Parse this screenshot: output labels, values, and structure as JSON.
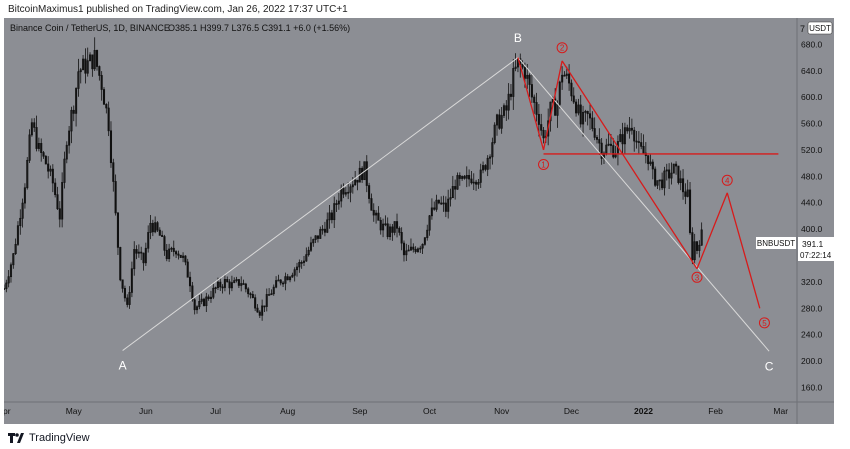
{
  "header": {
    "published_by": "BitcoinMaximus1 published on TradingView.com, Jan 26, 2022 17:37 UTC+1"
  },
  "footer": {
    "brand": "TradingView"
  },
  "colors": {
    "plot_bg": "#8c8e94",
    "price_axis_bg": "#8c8e94",
    "candle": "#111111",
    "projection": "#d9d9d9",
    "wave_red": "#d71b1b",
    "label_white": "#ffffff",
    "price_tag_bg": "#ffffff"
  },
  "chart_data": {
    "type": "candlestick",
    "legend": {
      "symbol": "Binance Coin / TetherUS, 1D, BINANCE",
      "ohlc": "O385.1  H399.7  L376.5  C391.1  +6.0 (+1.56%)"
    },
    "currency": "USDT",
    "symbol_tag": "BNBUSDT",
    "last_price": "391.1",
    "countdown": "07:22:14",
    "ylim": [
      138,
      720
    ],
    "x_range": [
      "2021-04-01",
      "2022-03-08"
    ],
    "y_ticks": [
      160,
      200,
      240,
      280,
      320,
      360,
      400,
      440,
      480,
      520,
      560,
      600,
      640,
      680
    ],
    "y_tick_labels": [
      "160.0",
      "200.0",
      "240.0",
      "280.0",
      "320.0",
      "360.0",
      "400.0",
      "440.0",
      "480.0",
      "520.0",
      "560.0",
      "600.0",
      "640.0",
      "680.0"
    ],
    "y_top_label": "7",
    "x_ticks": [
      {
        "date": "2021-04-01",
        "label": "Apr"
      },
      {
        "date": "2021-05-01",
        "label": "May"
      },
      {
        "date": "2021-06-01",
        "label": "Jun"
      },
      {
        "date": "2021-07-01",
        "label": "Jul"
      },
      {
        "date": "2021-08-01",
        "label": "Aug"
      },
      {
        "date": "2021-09-01",
        "label": "Sep"
      },
      {
        "date": "2021-10-01",
        "label": "Oct"
      },
      {
        "date": "2021-11-01",
        "label": "Nov"
      },
      {
        "date": "2021-12-01",
        "label": "Dec"
      },
      {
        "date": "2022-01-01",
        "label": "2022"
      },
      {
        "date": "2022-02-01",
        "label": "Feb"
      },
      {
        "date": "2022-03-01",
        "label": "Mar"
      }
    ],
    "close_anchors": [
      [
        "2021-04-01",
        310
      ],
      [
        "2021-04-05",
        360
      ],
      [
        "2021-04-10",
        470
      ],
      [
        "2021-04-13",
        560
      ],
      [
        "2021-04-16",
        520
      ],
      [
        "2021-04-19",
        500
      ],
      [
        "2021-04-22",
        470
      ],
      [
        "2021-04-25",
        420
      ],
      [
        "2021-04-28",
        540
      ],
      [
        "2021-05-01",
        590
      ],
      [
        "2021-05-03",
        640
      ],
      [
        "2021-05-07",
        650
      ],
      [
        "2021-05-10",
        660
      ],
      [
        "2021-05-13",
        620
      ],
      [
        "2021-05-16",
        560
      ],
      [
        "2021-05-19",
        420
      ],
      [
        "2021-05-21",
        330
      ],
      [
        "2021-05-24",
        280
      ],
      [
        "2021-05-27",
        370
      ],
      [
        "2021-05-31",
        350
      ],
      [
        "2021-06-03",
        410
      ],
      [
        "2021-06-07",
        390
      ],
      [
        "2021-06-10",
        360
      ],
      [
        "2021-06-14",
        370
      ],
      [
        "2021-06-17",
        355
      ],
      [
        "2021-06-20",
        320
      ],
      [
        "2021-06-22",
        280
      ],
      [
        "2021-06-26",
        290
      ],
      [
        "2021-07-01",
        310
      ],
      [
        "2021-07-05",
        320
      ],
      [
        "2021-07-08",
        315
      ],
      [
        "2021-07-12",
        320
      ],
      [
        "2021-07-16",
        300
      ],
      [
        "2021-07-20",
        275
      ],
      [
        "2021-07-24",
        300
      ],
      [
        "2021-07-28",
        320
      ],
      [
        "2021-08-01",
        330
      ],
      [
        "2021-08-07",
        350
      ],
      [
        "2021-08-12",
        380
      ],
      [
        "2021-08-16",
        400
      ],
      [
        "2021-08-20",
        420
      ],
      [
        "2021-08-24",
        460
      ],
      [
        "2021-08-28",
        470
      ],
      [
        "2021-09-03",
        490
      ],
      [
        "2021-09-07",
        420
      ],
      [
        "2021-09-09",
        410
      ],
      [
        "2021-09-13",
        395
      ],
      [
        "2021-09-17",
        405
      ],
      [
        "2021-09-20",
        360
      ],
      [
        "2021-09-24",
        370
      ],
      [
        "2021-09-28",
        380
      ],
      [
        "2021-10-01",
        420
      ],
      [
        "2021-10-05",
        440
      ],
      [
        "2021-10-08",
        430
      ],
      [
        "2021-10-12",
        470
      ],
      [
        "2021-10-16",
        470
      ],
      [
        "2021-10-19",
        480
      ],
      [
        "2021-10-23",
        480
      ],
      [
        "2021-10-26",
        510
      ],
      [
        "2021-10-30",
        560
      ],
      [
        "2021-11-03",
        580
      ],
      [
        "2021-11-06",
        630
      ],
      [
        "2021-11-08",
        650
      ],
      [
        "2021-11-11",
        640
      ],
      [
        "2021-11-14",
        600
      ],
      [
        "2021-11-17",
        570
      ],
      [
        "2021-11-19",
        535
      ],
      [
        "2021-11-22",
        580
      ],
      [
        "2021-11-25",
        590
      ],
      [
        "2021-11-27",
        640
      ],
      [
        "2021-11-30",
        620
      ],
      [
        "2021-12-03",
        590
      ],
      [
        "2021-12-05",
        560
      ],
      [
        "2021-12-08",
        570
      ],
      [
        "2021-12-11",
        550
      ],
      [
        "2021-12-14",
        520
      ],
      [
        "2021-12-17",
        525
      ],
      [
        "2021-12-20",
        520
      ],
      [
        "2021-12-23",
        540
      ],
      [
        "2021-12-27",
        560
      ],
      [
        "2021-12-30",
        520
      ],
      [
        "2022-01-03",
        510
      ],
      [
        "2022-01-05",
        480
      ],
      [
        "2022-01-08",
        470
      ],
      [
        "2022-01-11",
        480
      ],
      [
        "2022-01-14",
        490
      ],
      [
        "2022-01-16",
        480
      ],
      [
        "2022-01-18",
        460
      ],
      [
        "2022-01-20",
        450
      ],
      [
        "2022-01-21",
        390
      ],
      [
        "2022-01-22",
        360
      ],
      [
        "2022-01-23",
        380
      ],
      [
        "2022-01-24",
        370
      ],
      [
        "2022-01-25",
        385
      ],
      [
        "2022-01-26",
        391
      ]
    ],
    "pattern_lines": {
      "ab_projection": [
        [
          "2021-05-22",
          216
        ],
        [
          "2021-11-08",
          660
        ]
      ],
      "bc_projection": [
        [
          "2021-11-08",
          660
        ],
        [
          "2022-02-24",
          215
        ]
      ],
      "wave_path": [
        [
          "2021-11-08",
          660
        ],
        [
          "2021-11-19",
          520
        ],
        [
          "2021-11-27",
          655
        ],
        [
          "2022-01-24",
          340
        ],
        [
          "2022-02-06",
          455
        ],
        [
          "2022-02-20",
          280
        ]
      ],
      "support_line": [
        [
          "2021-11-19",
          514
        ],
        [
          "2022-02-28",
          514
        ]
      ]
    },
    "annotations": [
      {
        "text": "A",
        "date": "2021-05-22",
        "price": 193,
        "style": "white"
      },
      {
        "text": "B",
        "date": "2021-11-08",
        "price": 690,
        "style": "white"
      },
      {
        "text": "C",
        "date": "2022-02-24",
        "price": 192,
        "style": "white"
      },
      {
        "text": "1",
        "date": "2021-11-19",
        "price": 498,
        "style": "red"
      },
      {
        "text": "2",
        "date": "2021-11-27",
        "price": 675,
        "style": "red"
      },
      {
        "text": "3",
        "date": "2022-01-24",
        "price": 327,
        "style": "red"
      },
      {
        "text": "4",
        "date": "2022-02-06",
        "price": 474,
        "style": "red"
      },
      {
        "text": "5",
        "date": "2022-02-22",
        "price": 258,
        "style": "red"
      }
    ]
  }
}
